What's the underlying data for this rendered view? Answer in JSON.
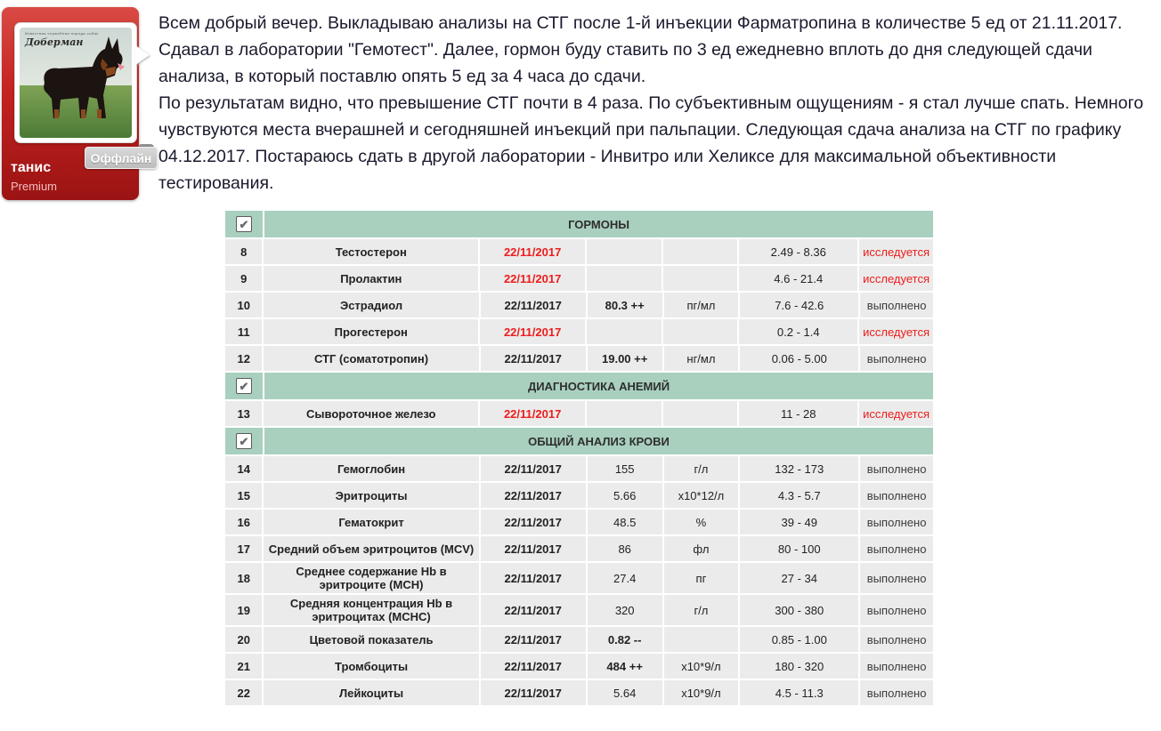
{
  "post": {
    "author": {
      "username": "танис",
      "badge": "Premium",
      "status": "Оффлайн",
      "avatar_caption": "Доберман",
      "avatar_caption_small": "Известная служебная порода собак"
    },
    "body": [
      "Всем добрый вечер. Выкладываю анализы на СТГ после 1-й инъекции Фарматропина в количестве 5 ед от 21.11.2017. Сдавал в лаборатории \"Гемотест\". Далее, гормон буду ставить по 3 ед ежедневно вплоть до дня следующей сдачи анализа, в который поставлю опять 5 ед за 4 часа до сдачи.",
      "По результатам видно, что превышение СТГ почти в 4 раза. По субъективным ощущениям - я стал лучше спать. Немного чувствуются места вчерашней и сегодняшней инъекций при пальпации. Следующая сдача анализа на СТГ по графику 04.12.2017. Постараюсь сдать в другой лаборатории - Инвитро или Хеликсе для максимальной объективности тестирования."
    ]
  },
  "results_table": {
    "colors": {
      "section_green": "#a9d0bf",
      "row_gray": "#ebebeb",
      "alert_red": "#ee1c1c",
      "card_red": "#c32220"
    },
    "checkbox_glyph": "✔",
    "sections": [
      {
        "title": "ГОРМОНЫ",
        "rows": [
          {
            "num": "8",
            "name": "Тестостерон",
            "date": "22/11/2017",
            "date_alert": true,
            "result": "",
            "result_strong": false,
            "unit": "",
            "range": "2.49 - 8.36",
            "status": "исследуется",
            "status_alert": true
          },
          {
            "num": "9",
            "name": "Пролактин",
            "date": "22/11/2017",
            "date_alert": true,
            "result": "",
            "result_strong": false,
            "unit": "",
            "range": "4.6 - 21.4",
            "status": "исследуется",
            "status_alert": true
          },
          {
            "num": "10",
            "name": "Эстрадиол",
            "date": "22/11/2017",
            "date_alert": false,
            "result": "80.3 ++",
            "result_strong": true,
            "unit": "пг/мл",
            "range": "7.6 - 42.6",
            "status": "выполнено",
            "status_alert": false
          },
          {
            "num": "11",
            "name": "Прогестерон",
            "date": "22/11/2017",
            "date_alert": true,
            "result": "",
            "result_strong": false,
            "unit": "",
            "range": "0.2 - 1.4",
            "status": "исследуется",
            "status_alert": true
          },
          {
            "num": "12",
            "name": "СТГ (соматотропин)",
            "date": "22/11/2017",
            "date_alert": false,
            "result": "19.00 ++",
            "result_strong": true,
            "unit": "нг/мл",
            "range": "0.06 - 5.00",
            "status": "выполнено",
            "status_alert": false
          }
        ]
      },
      {
        "title": "ДИАГНОСТИКА АНЕМИЙ",
        "rows": [
          {
            "num": "13",
            "name": "Сывороточное железо",
            "date": "22/11/2017",
            "date_alert": true,
            "result": "",
            "result_strong": false,
            "unit": "",
            "range": "11 - 28",
            "status": "исследуется",
            "status_alert": true
          }
        ]
      },
      {
        "title": "ОБЩИЙ АНАЛИЗ КРОВИ",
        "rows": [
          {
            "num": "14",
            "name": "Гемоглобин",
            "date": "22/11/2017",
            "date_alert": false,
            "result": "155",
            "result_strong": false,
            "unit": "г/л",
            "range": "132 - 173",
            "status": "выполнено",
            "status_alert": false
          },
          {
            "num": "15",
            "name": "Эритроциты",
            "date": "22/11/2017",
            "date_alert": false,
            "result": "5.66",
            "result_strong": false,
            "unit": "х10*12/л",
            "range": "4.3 - 5.7",
            "status": "выполнено",
            "status_alert": false
          },
          {
            "num": "16",
            "name": "Гематокрит",
            "date": "22/11/2017",
            "date_alert": false,
            "result": "48.5",
            "result_strong": false,
            "unit": "%",
            "range": "39 - 49",
            "status": "выполнено",
            "status_alert": false
          },
          {
            "num": "17",
            "name": "Средний объем эритроцитов (MCV)",
            "date": "22/11/2017",
            "date_alert": false,
            "result": "86",
            "result_strong": false,
            "unit": "фл",
            "range": "80 - 100",
            "status": "выполнено",
            "status_alert": false
          },
          {
            "num": "18",
            "name": "Среднее содержание Hb в эритроците (MCH)",
            "date": "22/11/2017",
            "date_alert": false,
            "result": "27.4",
            "result_strong": false,
            "unit": "пг",
            "range": "27 - 34",
            "status": "выполнено",
            "status_alert": false
          },
          {
            "num": "19",
            "name": "Средняя концентрация Hb в эритроцитах (MCHC)",
            "date": "22/11/2017",
            "date_alert": false,
            "result": "320",
            "result_strong": false,
            "unit": "г/л",
            "range": "300 - 380",
            "status": "выполнено",
            "status_alert": false
          },
          {
            "num": "20",
            "name": "Цветовой показатель",
            "date": "22/11/2017",
            "date_alert": false,
            "result": "0.82 --",
            "result_strong": true,
            "unit": "",
            "range": "0.85 - 1.00",
            "status": "выполнено",
            "status_alert": false
          },
          {
            "num": "21",
            "name": "Тромбоциты",
            "date": "22/11/2017",
            "date_alert": false,
            "result": "484 ++",
            "result_strong": true,
            "unit": "х10*9/л",
            "range": "180 - 320",
            "status": "выполнено",
            "status_alert": false
          },
          {
            "num": "22",
            "name": "Лейкоциты",
            "date": "22/11/2017",
            "date_alert": false,
            "result": "5.64",
            "result_strong": false,
            "unit": "х10*9/л",
            "range": "4.5 - 11.3",
            "status": "выполнено",
            "status_alert": false
          }
        ]
      }
    ]
  }
}
